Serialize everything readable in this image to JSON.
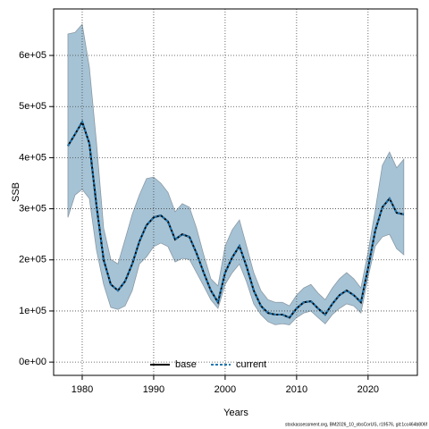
{
  "chart_data": {
    "type": "line",
    "xlabel": "Years",
    "ylabel": "SSB",
    "footer": "stockassessment.org, BM2026_10_obsCorUS, r19576, git:1cc464b806f",
    "x": [
      1978,
      1979,
      1980,
      1981,
      1982,
      1983,
      1984,
      1985,
      1986,
      1987,
      1988,
      1989,
      1990,
      1991,
      1992,
      1993,
      1994,
      1995,
      1996,
      1997,
      1998,
      1999,
      2000,
      2001,
      2002,
      2003,
      2004,
      2005,
      2006,
      2007,
      2008,
      2009,
      2010,
      2011,
      2012,
      2013,
      2014,
      2015,
      2016,
      2017,
      2018,
      2019,
      2020,
      2021,
      2022,
      2023,
      2024,
      2025
    ],
    "series": [
      {
        "name": "base",
        "color": "#000000",
        "dash": false,
        "values": [
          423000,
          446000,
          470000,
          428000,
          306000,
          200000,
          152000,
          140000,
          158000,
          192000,
          236000,
          268000,
          283000,
          287000,
          275000,
          240000,
          250000,
          245000,
          213000,
          175000,
          140000,
          117000,
          175000,
          205000,
          227000,
          187000,
          140000,
          110000,
          96000,
          93000,
          93000,
          87000,
          105000,
          117000,
          119000,
          105000,
          93000,
          114000,
          131000,
          140000,
          131000,
          117000,
          184000,
          257000,
          303000,
          320000,
          292000,
          289000
        ]
      },
      {
        "name": "current",
        "color": "#1f78b4",
        "dash": true,
        "values": [
          423000,
          446000,
          470000,
          428000,
          306000,
          200000,
          152000,
          140000,
          158000,
          192000,
          236000,
          268000,
          283000,
          287000,
          275000,
          240000,
          250000,
          245000,
          213000,
          175000,
          140000,
          117000,
          175000,
          205000,
          227000,
          187000,
          140000,
          110000,
          96000,
          93000,
          93000,
          87000,
          105000,
          117000,
          119000,
          105000,
          93000,
          114000,
          131000,
          140000,
          131000,
          117000,
          184000,
          257000,
          303000,
          320000,
          292000,
          289000
        ]
      }
    ],
    "band": {
      "color": "#a6c3d5",
      "upper": [
        642000,
        645000,
        661000,
        577000,
        429000,
        262000,
        201000,
        192000,
        240000,
        289000,
        327000,
        359000,
        362000,
        350000,
        332000,
        294000,
        310000,
        303000,
        262000,
        210000,
        163000,
        149000,
        227000,
        259000,
        278000,
        227000,
        175000,
        140000,
        122000,
        117000,
        117000,
        110000,
        131000,
        145000,
        152000,
        135000,
        122000,
        145000,
        163000,
        175000,
        163000,
        145000,
        215000,
        297000,
        385000,
        411000,
        380000,
        397000
      ],
      "lower": [
        283000,
        327000,
        338000,
        320000,
        219000,
        152000,
        107000,
        103000,
        110000,
        140000,
        192000,
        206000,
        226000,
        233000,
        226000,
        196000,
        203000,
        201000,
        175000,
        149000,
        122000,
        105000,
        152000,
        175000,
        192000,
        157000,
        114000,
        93000,
        79000,
        73000,
        75000,
        73000,
        87000,
        96000,
        100000,
        87000,
        75000,
        93000,
        105000,
        114000,
        110000,
        96000,
        166000,
        227000,
        245000,
        250000,
        222000,
        210000
      ]
    },
    "xlim": [
      1976,
      2026.9
    ],
    "ylim": [
      -26000,
      691000
    ],
    "xticks": [
      1980,
      1990,
      2000,
      2010,
      2020
    ],
    "yticks": [
      {
        "value": 0,
        "label": "0e+00"
      },
      {
        "value": 100000,
        "label": "1e+05"
      },
      {
        "value": 200000,
        "label": "2e+05"
      },
      {
        "value": 300000,
        "label": "3e+05"
      },
      {
        "value": 400000,
        "label": "4e+05"
      },
      {
        "value": 500000,
        "label": "5e+05"
      },
      {
        "value": 600000,
        "label": "6e+05"
      }
    ],
    "grid": true,
    "legend": "bottom"
  }
}
